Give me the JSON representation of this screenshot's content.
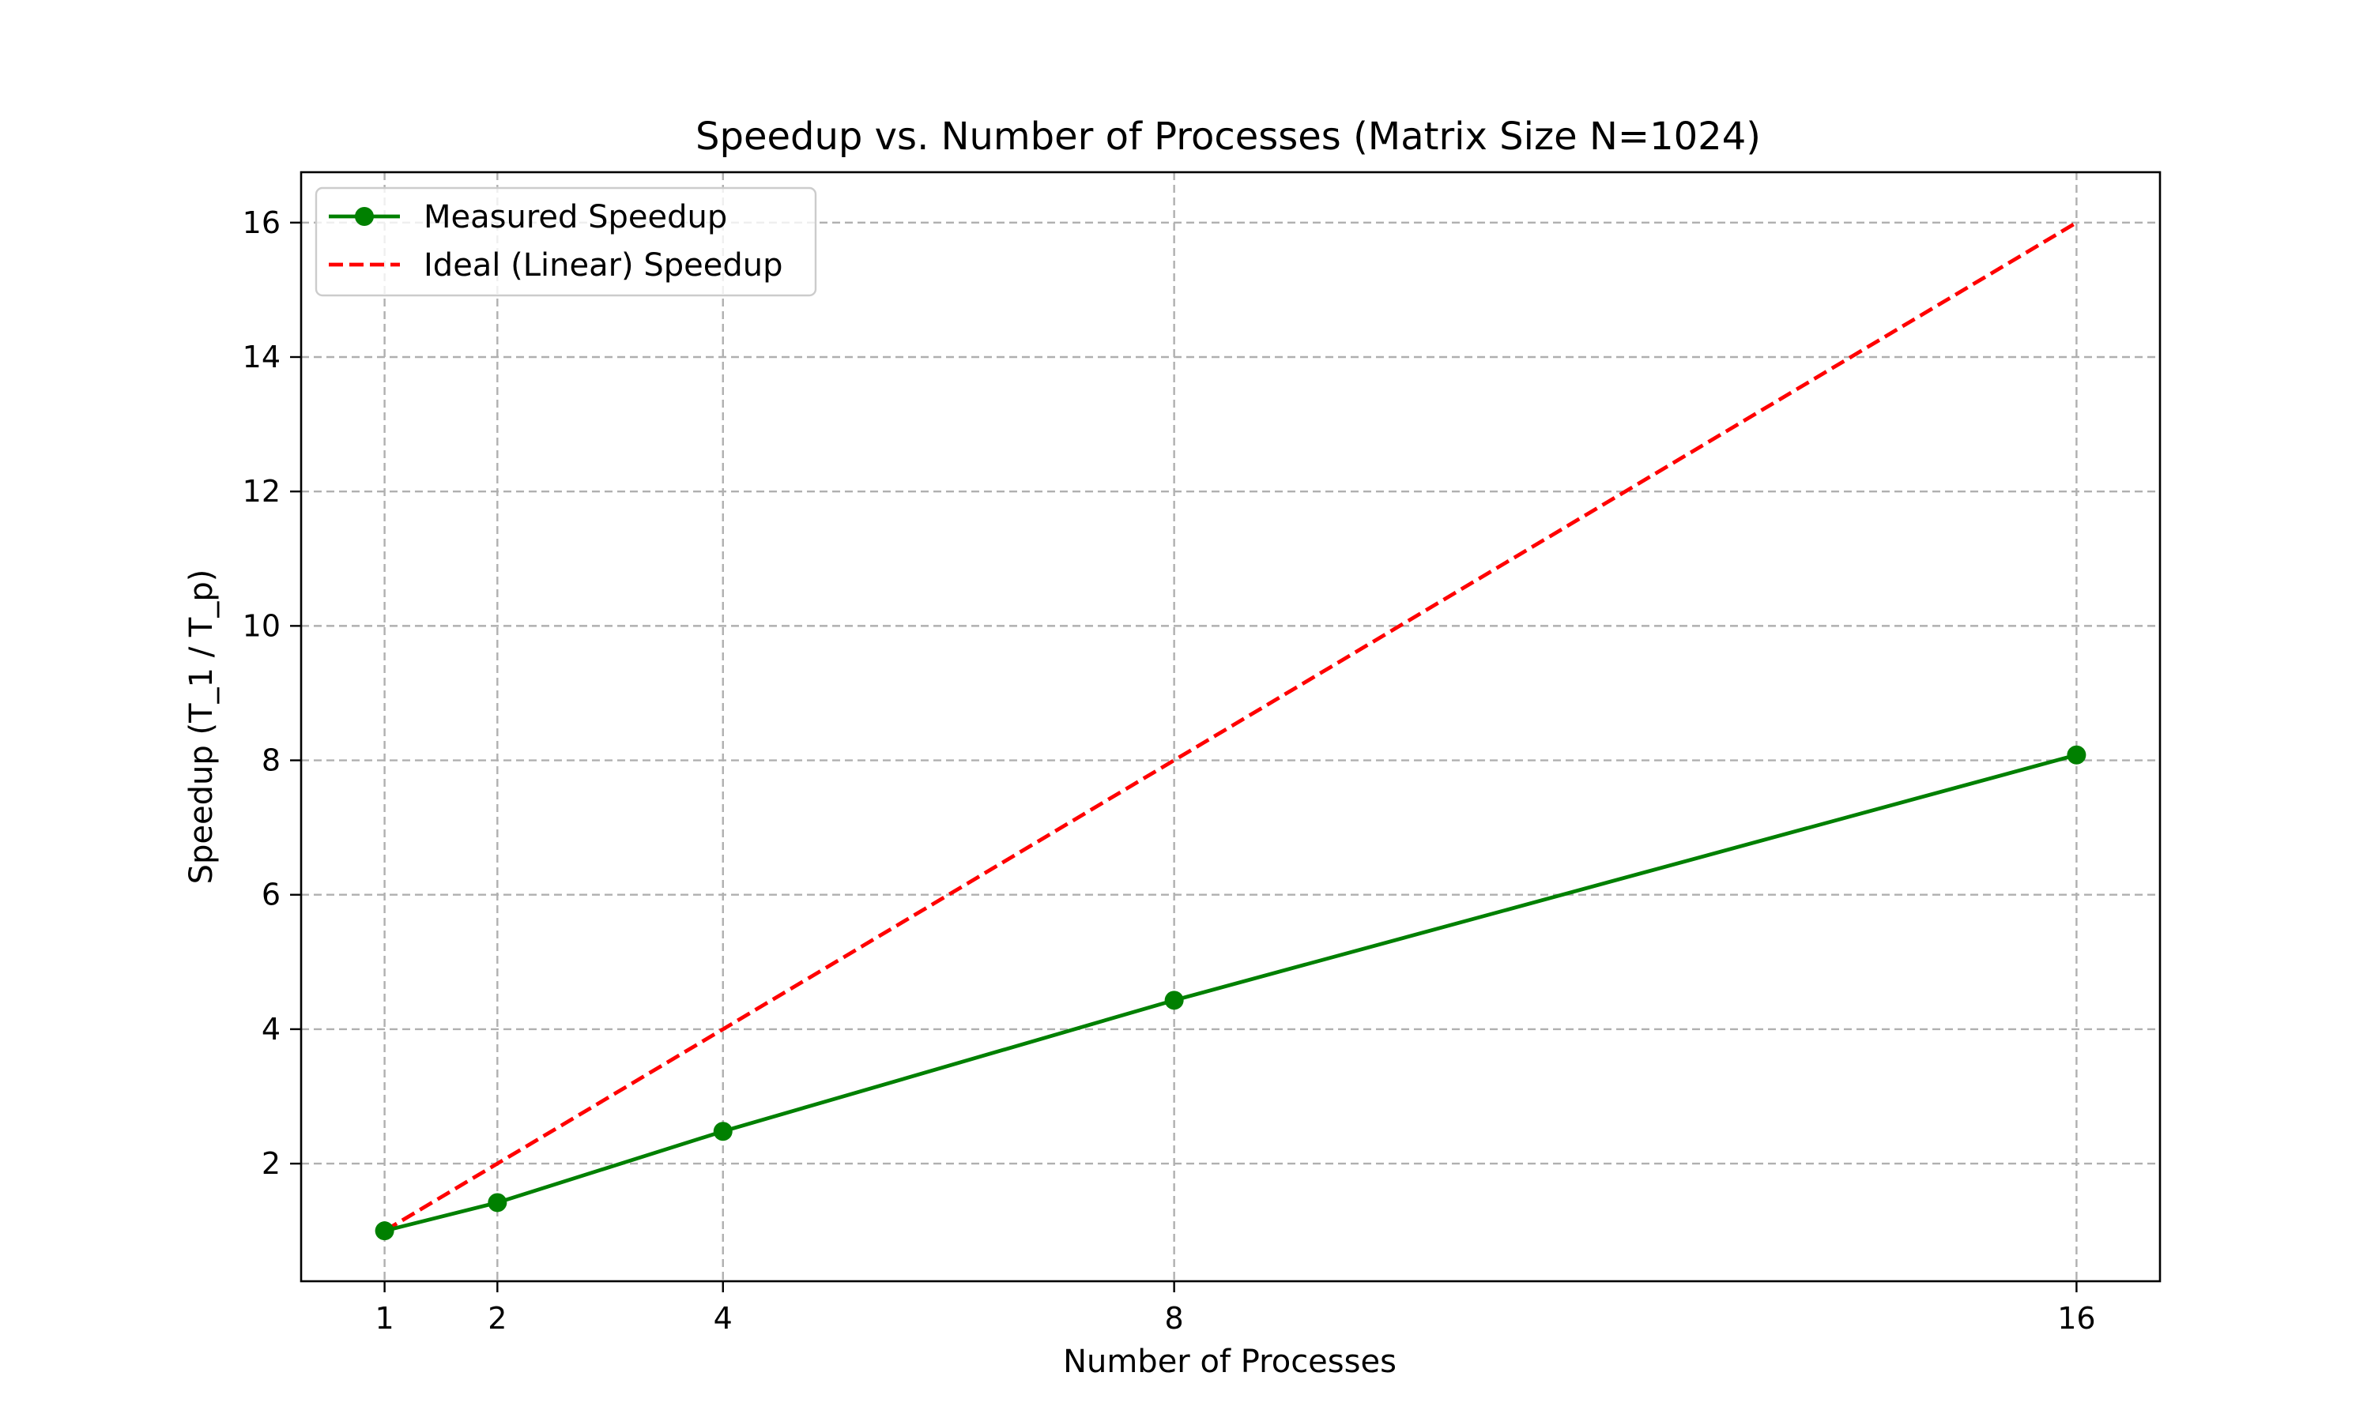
{
  "chart_data": {
    "type": "line",
    "title": "Speedup vs. Number of Processes (Matrix Size N=1024)",
    "xlabel": "Number of Processes",
    "ylabel": "Speedup (T_1 / T_p)",
    "x": [
      1,
      2,
      4,
      8,
      16
    ],
    "x_tick_labels": [
      "1",
      "2",
      "4",
      "8",
      "16"
    ],
    "y_ticks": [
      2,
      4,
      6,
      8,
      10,
      12,
      14,
      16
    ],
    "y_tick_labels": [
      "2",
      "4",
      "6",
      "8",
      "10",
      "12",
      "14",
      "16"
    ],
    "xlim": [
      0.26,
      16.74
    ],
    "ylim": [
      0.25,
      16.75
    ],
    "grid": true,
    "legend_position": "top-left",
    "series": [
      {
        "name": "Measured Speedup",
        "values": [
          1.0,
          1.42,
          2.48,
          4.43,
          8.08
        ],
        "color": "#008000",
        "style": "solid",
        "marker": "circle"
      },
      {
        "name": "Ideal (Linear) Speedup",
        "values": [
          1,
          2,
          4,
          8,
          16
        ],
        "color": "#ff0000",
        "style": "dashed",
        "marker": "none"
      }
    ]
  }
}
